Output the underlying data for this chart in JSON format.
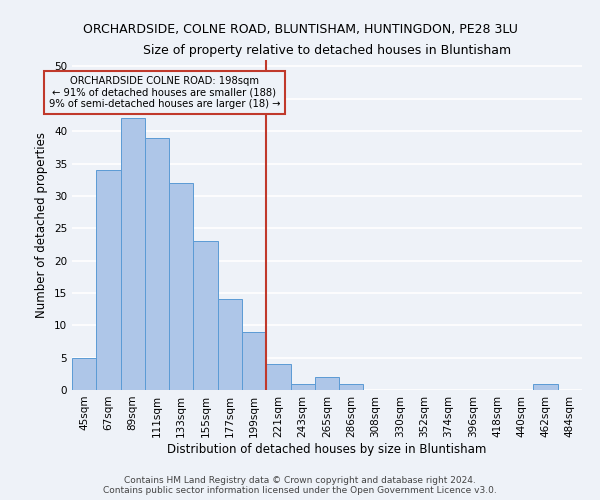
{
  "title": "ORCHARDSIDE, COLNE ROAD, BLUNTISHAM, HUNTINGDON, PE28 3LU",
  "subtitle": "Size of property relative to detached houses in Bluntisham",
  "xlabel": "Distribution of detached houses by size in Bluntisham",
  "ylabel": "Number of detached properties",
  "categories": [
    "45sqm",
    "67sqm",
    "89sqm",
    "111sqm",
    "133sqm",
    "155sqm",
    "177sqm",
    "199sqm",
    "221sqm",
    "243sqm",
    "265sqm",
    "286sqm",
    "308sqm",
    "330sqm",
    "352sqm",
    "374sqm",
    "396sqm",
    "418sqm",
    "440sqm",
    "462sqm",
    "484sqm"
  ],
  "values": [
    5,
    34,
    42,
    39,
    32,
    23,
    14,
    9,
    4,
    1,
    2,
    1,
    0,
    0,
    0,
    0,
    0,
    0,
    0,
    1,
    0
  ],
  "bar_color": "#aec6e8",
  "bar_edge_color": "#5b9bd5",
  "vline_index": 7.5,
  "vline_color": "#c0392b",
  "annotation_title": "ORCHARDSIDE COLNE ROAD: 198sqm",
  "annotation_line1": "← 91% of detached houses are smaller (188)",
  "annotation_line2": "9% of semi-detached houses are larger (18) →",
  "annotation_box_color": "#c0392b",
  "ylim": [
    0,
    51
  ],
  "yticks": [
    0,
    5,
    10,
    15,
    20,
    25,
    30,
    35,
    40,
    45,
    50
  ],
  "footer_line1": "Contains HM Land Registry data © Crown copyright and database right 2024.",
  "footer_line2": "Contains public sector information licensed under the Open Government Licence v3.0.",
  "bg_color": "#eef2f8",
  "grid_color": "#ffffff",
  "title_fontsize": 9,
  "subtitle_fontsize": 9,
  "axis_label_fontsize": 8.5,
  "tick_fontsize": 7.5,
  "footer_fontsize": 6.5
}
